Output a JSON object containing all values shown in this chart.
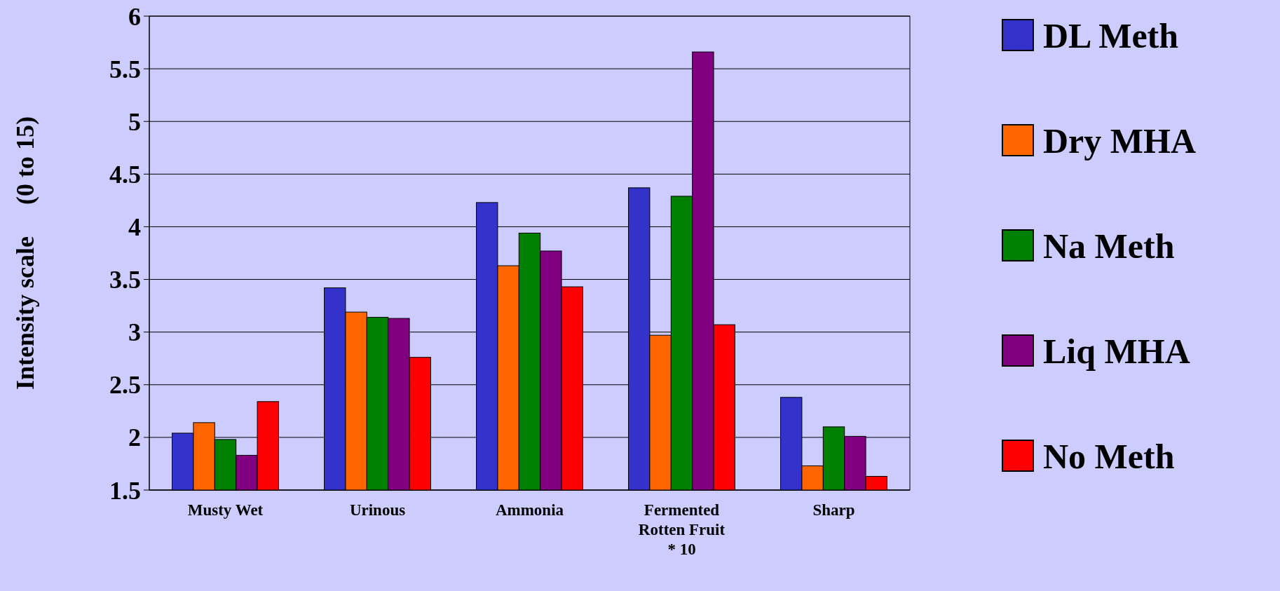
{
  "chart_data": {
    "type": "bar",
    "ylabel": "Intensity scale     (0 to 15)",
    "categories": [
      "Musty Wet",
      "Urinous",
      "Ammonia",
      "Fermented\nRotten Fruit\n* 10",
      "Sharp"
    ],
    "series": [
      {
        "name": "DL Meth",
        "color": "#3333cc",
        "values": [
          2.04,
          3.42,
          4.23,
          4.37,
          2.38
        ]
      },
      {
        "name": "Dry MHA",
        "color": "#ff6600",
        "values": [
          2.14,
          3.19,
          3.63,
          2.97,
          1.73
        ]
      },
      {
        "name": "Na Meth",
        "color": "#008000",
        "values": [
          1.98,
          3.14,
          3.94,
          4.29,
          2.1
        ]
      },
      {
        "name": "Liq MHA",
        "color": "#800080",
        "values": [
          1.83,
          3.13,
          3.77,
          5.66,
          2.01
        ]
      },
      {
        "name": "No Meth",
        "color": "#ff0000",
        "values": [
          2.34,
          2.76,
          3.43,
          3.07,
          1.63
        ]
      }
    ],
    "ylim": [
      1.5,
      6
    ],
    "yticks": [
      1.5,
      2,
      2.5,
      3,
      3.5,
      4,
      4.5,
      5,
      5.5,
      6
    ],
    "grid": "y",
    "legend": "right"
  }
}
